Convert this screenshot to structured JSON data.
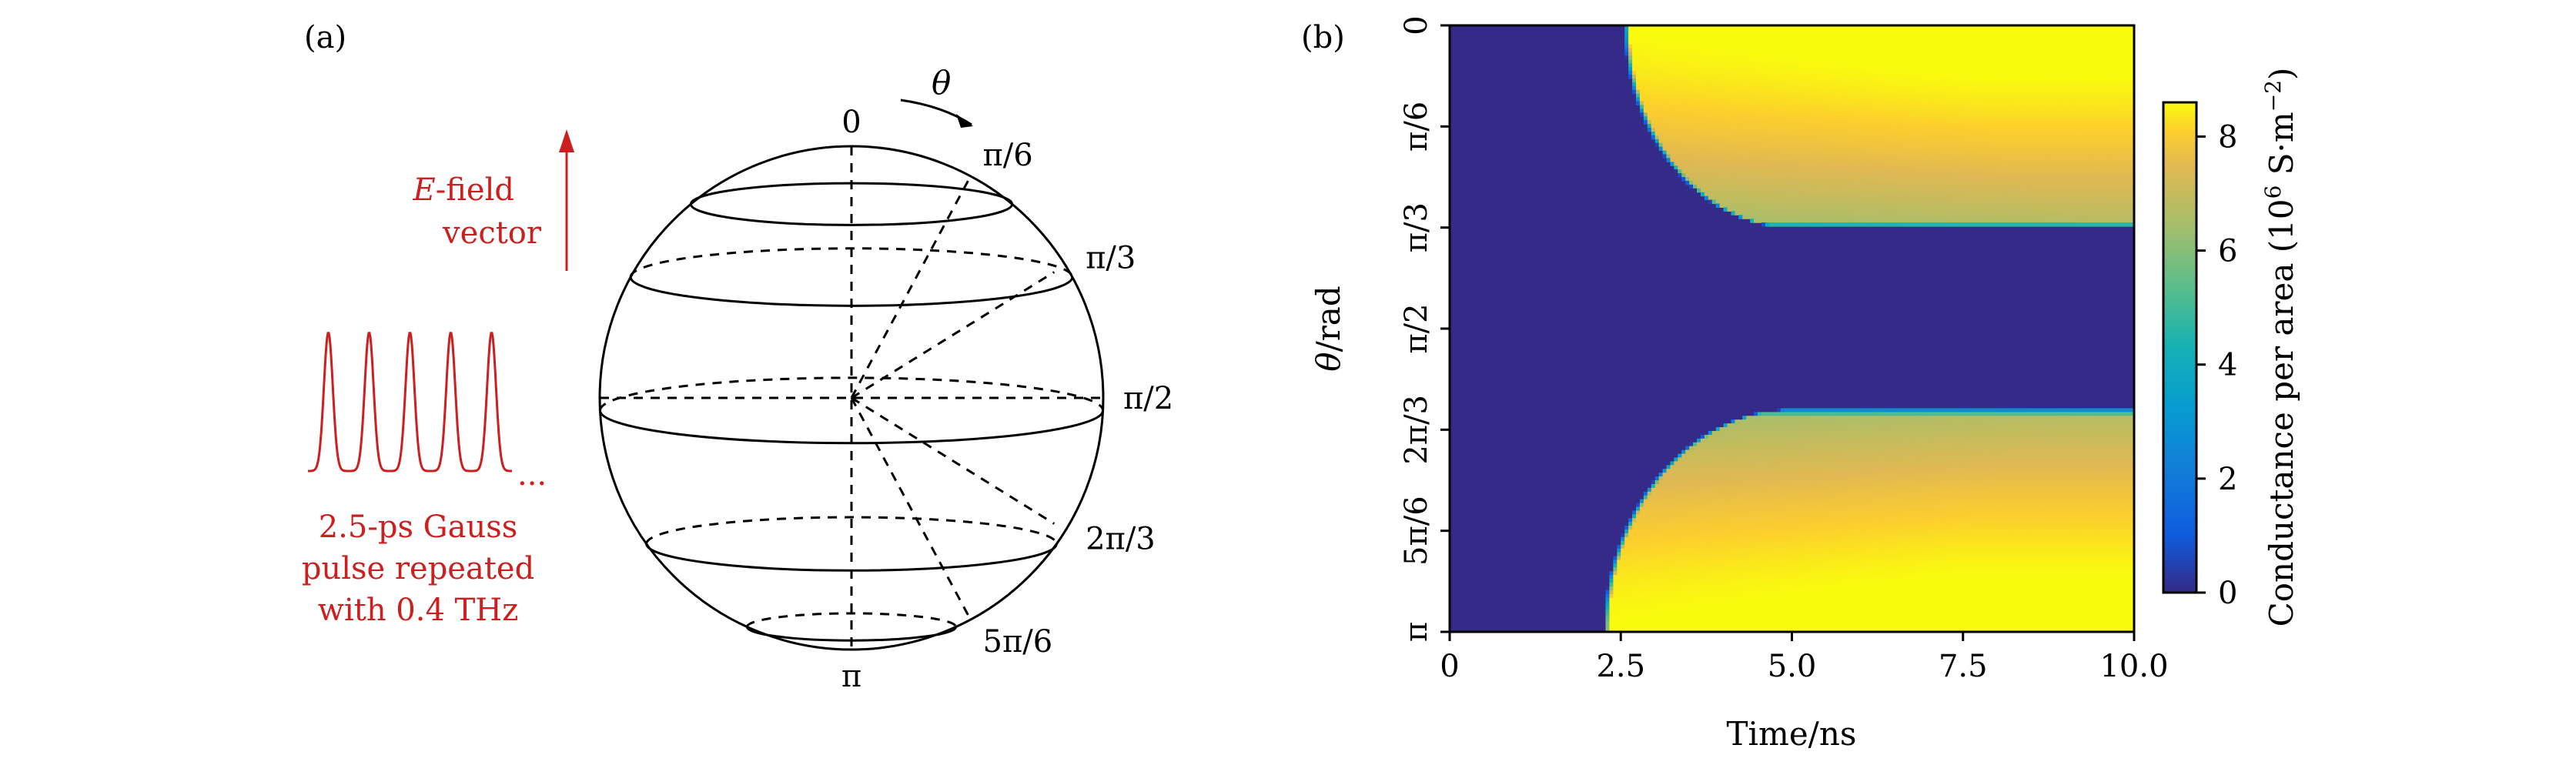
{
  "panel_a": {
    "label": "(a)",
    "theta_symbol": "θ",
    "efield_label_italic": "E",
    "efield_label_rest": "-field",
    "efield_label_line2": "vector",
    "pulse_ellipsis": "...",
    "pulse_caption": [
      "2.5-ps Gauss",
      "pulse repeated",
      "with 0.4 THz"
    ],
    "angles": [
      {
        "label": "0",
        "deg": 0
      },
      {
        "label": "π/6",
        "deg": 30
      },
      {
        "label": "π/3",
        "deg": 60
      },
      {
        "label": "π/2",
        "deg": 90
      },
      {
        "label": "2π/3",
        "deg": 120
      },
      {
        "label": "5π/6",
        "deg": 150
      },
      {
        "label": "π",
        "deg": 180
      }
    ],
    "pulse_count": 5,
    "colors": {
      "red": "#cc1f1f",
      "line": "#000000"
    }
  },
  "panel_b": {
    "label": "(b)",
    "colorbar_label": "Conductance per area",
    "colorbar_unit_prefix": "(10",
    "colorbar_unit_exp": "6",
    "colorbar_unit_mid": " S·m",
    "colorbar_unit_exp2": "−2",
    "colorbar_unit_suffix": ")"
  },
  "chart_data": {
    "type": "heatmap",
    "title": "",
    "xlabel": "Time/ns",
    "ylabel_italic": "θ",
    "ylabel_rest": "/rad",
    "xlim": [
      0,
      10
    ],
    "ylim": [
      0,
      3.14159
    ],
    "xticks": [
      0,
      2.5,
      5,
      7.5,
      10
    ],
    "xtick_labels": [
      "0",
      "2.5",
      "5.0",
      "7.5",
      "10.0"
    ],
    "yticks": [
      0,
      0.5236,
      1.0472,
      1.5708,
      2.0944,
      2.618,
      3.1416
    ],
    "ytick_labels": [
      "0",
      "π/6",
      "π/3",
      "π/2",
      "2π/3",
      "5π/6",
      "π"
    ],
    "colorbar": {
      "min": 0,
      "max": 8.6,
      "ticks": [
        0,
        2,
        4,
        6,
        8
      ],
      "tick_labels": [
        "0",
        "2",
        "4",
        "6",
        "8"
      ],
      "colormap": "parula"
    },
    "upper_region": {
      "theta_range": [
        0,
        1.0472
      ],
      "switch_time_at_theta0_ns": 2.55,
      "switch_time_at_edge_ns": 5.0,
      "value_range": [
        6.5,
        8.6
      ]
    },
    "lower_region": {
      "theta_range": [
        1.9897,
        3.1416
      ],
      "switch_time_at_theta_pi_ns": 2.25,
      "switch_time_at_edge_ns": 5.0,
      "value_range": [
        6.5,
        8.6
      ]
    },
    "off_value": 0,
    "grid": false
  }
}
